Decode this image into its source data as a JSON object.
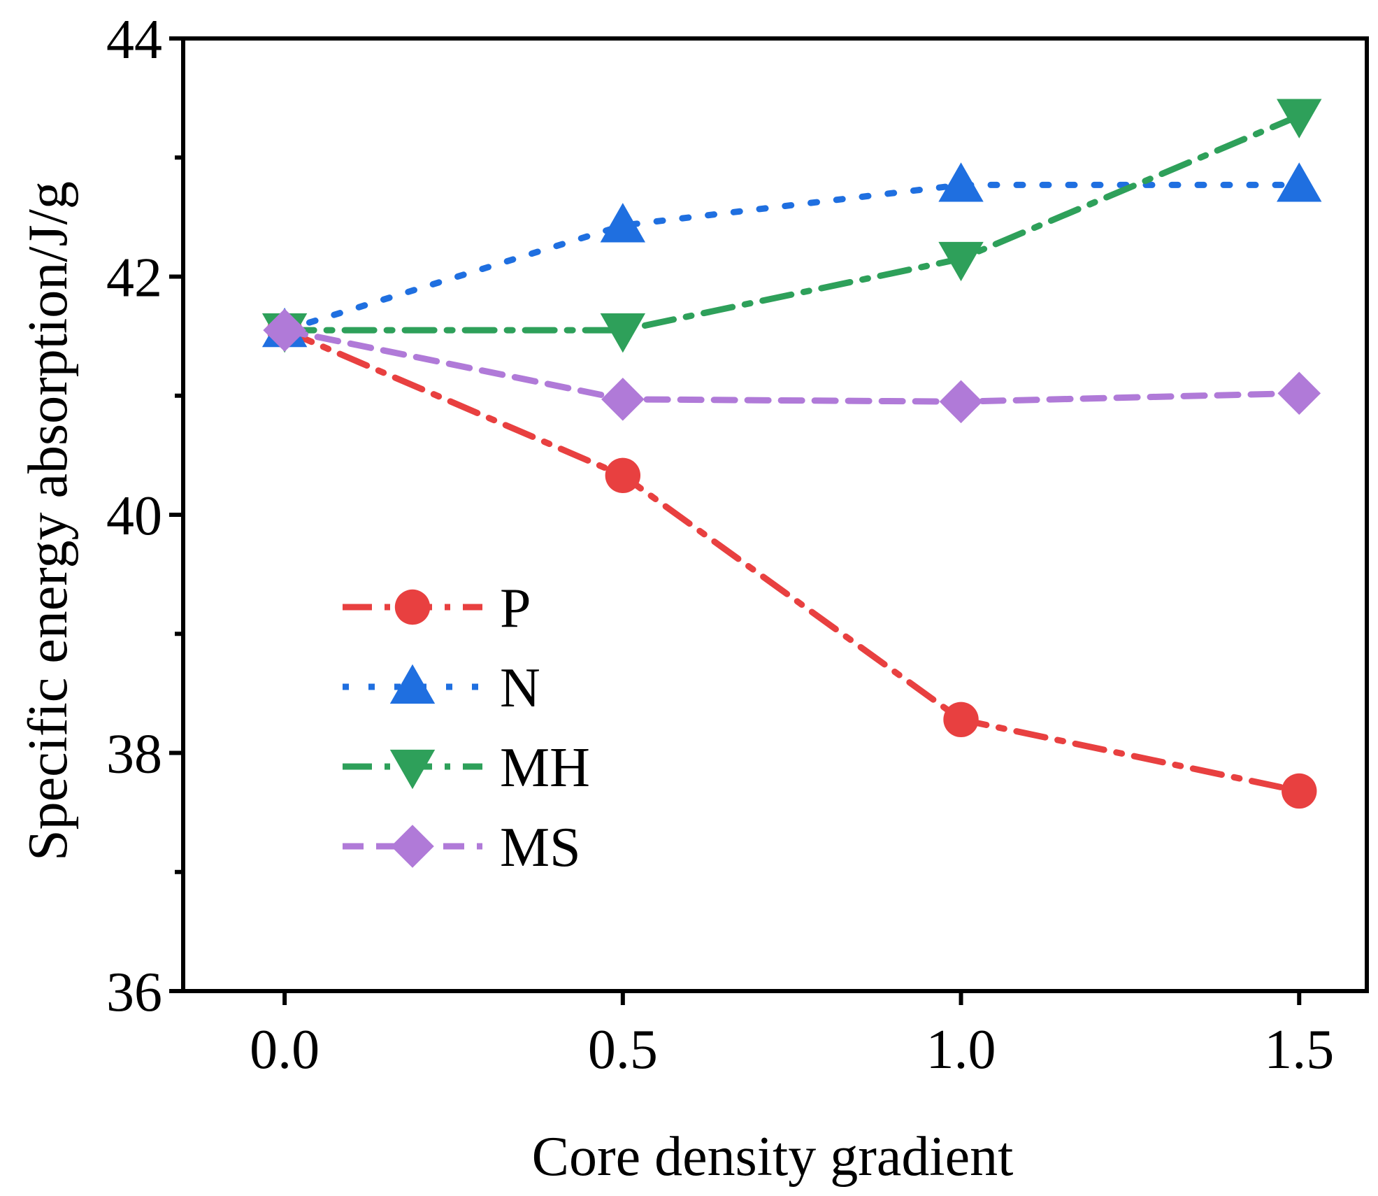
{
  "chart_data": {
    "type": "line",
    "title": "",
    "xlabel": "Core density gradient",
    "ylabel": "Specific energy absorption/J/g",
    "xlim": [
      -0.15,
      1.6
    ],
    "ylim": [
      36,
      44
    ],
    "xticks": [
      0.0,
      0.5,
      1.0,
      1.5
    ],
    "xtick_labels": [
      "0.0",
      "0.5",
      "1.0",
      "1.5"
    ],
    "yticks": [
      36,
      38,
      40,
      42,
      44
    ],
    "ytick_labels": [
      "36",
      "38",
      "40",
      "42",
      "44"
    ],
    "grid": false,
    "legend_position": "center-left",
    "x": [
      0.0,
      0.5,
      1.0,
      1.5
    ],
    "series": [
      {
        "name": "P",
        "values": [
          41.55,
          40.33,
          38.28,
          37.68
        ],
        "color": "#e84040",
        "marker": "circle",
        "line_style": "dash-dot"
      },
      {
        "name": "N",
        "values": [
          41.55,
          42.43,
          42.77,
          42.77
        ],
        "color": "#1f6fe0",
        "marker": "triangle-up",
        "line_style": "dot"
      },
      {
        "name": "MH",
        "values": [
          41.55,
          41.55,
          42.15,
          43.35
        ],
        "color": "#2ea05a",
        "marker": "triangle-down",
        "line_style": "dash-dot"
      },
      {
        "name": "MS",
        "values": [
          41.55,
          40.97,
          40.95,
          41.02
        ],
        "color": "#b07ad8",
        "marker": "diamond",
        "line_style": "dash"
      }
    ]
  }
}
